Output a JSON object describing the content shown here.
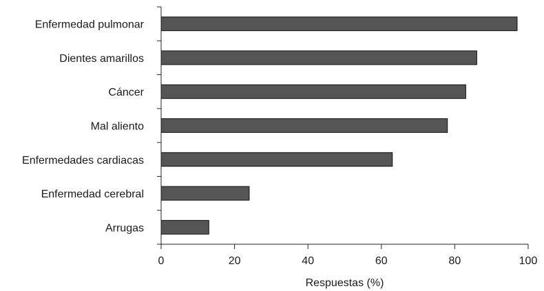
{
  "chart_data": {
    "type": "bar",
    "orientation": "horizontal",
    "categories": [
      "Enfermedad pulmonar",
      "Dientes amarillos",
      "Cáncer",
      "Mal aliento",
      "Enfermedades cardiacas",
      "Enfermedad cerebral",
      "Arrugas"
    ],
    "values": [
      97,
      86,
      83,
      78,
      63,
      24,
      13
    ],
    "title": "",
    "xlabel": "Respuestas (%)",
    "ylabel": "",
    "xlim": [
      0,
      100
    ],
    "xticks": [
      "0",
      "20",
      "40",
      "60",
      "80",
      "100"
    ],
    "bar_color": "#555555",
    "grid": false,
    "legend": "none"
  }
}
